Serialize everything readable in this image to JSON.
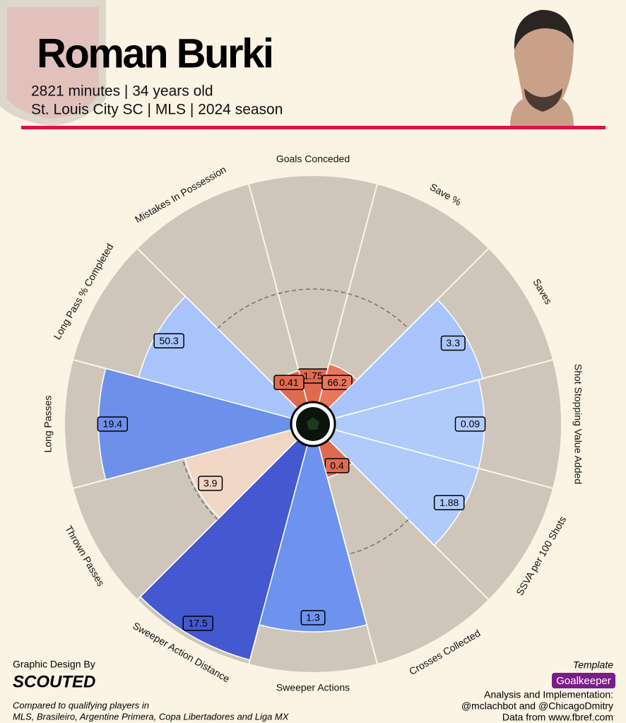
{
  "header": {
    "title": "Roman Burki",
    "subtitle_lines": [
      "2821 minutes | 34 years old",
      "St. Louis City SC | MLS | 2024 season"
    ]
  },
  "chart_data": {
    "type": "pizza",
    "categories": [
      "Goals Conceded",
      "Save %",
      "Saves",
      "Shot Stopping Value Added",
      "SSVA per 100 Shots",
      "Crosses Collected",
      "Sweeper Actions",
      "Sweeper Action Distance",
      "Thrown Passes",
      "Long Passes",
      "Long Pass % Completed",
      "Mistakes In Possession"
    ],
    "values": [
      1.75,
      66.2,
      3.3,
      0.09,
      1.88,
      0.4,
      1.3,
      17.5,
      3.9,
      19.4,
      50.3,
      0.41
    ],
    "percentiles": [
      15,
      18,
      68,
      66,
      66,
      15,
      82,
      98,
      49,
      85,
      70,
      15
    ],
    "colors": [
      "#e06a4f",
      "#e9775c",
      "#a9c4fa",
      "#b0cbf9",
      "#b0cbf9",
      "#e06a4f",
      "#6d93ee",
      "#4458cf",
      "#f0d6c4",
      "#6d90ea",
      "#a9c4fa",
      "#e06a4f"
    ],
    "background_color": "#cec6ba",
    "reference_percentile": 50
  },
  "footer": {
    "credit": "Graphic Design By",
    "brand": "SCOUTED",
    "comparison_lines": [
      "Compared to qualifying players in",
      "MLS, Brasileiro, Argentine Primera, Copa Libertadores and Liga MX"
    ],
    "template_label": "Template",
    "template": "Goalkeeper",
    "analysis_lines": [
      "Analysis and Implementation:",
      "@mclachbot and @ChicagoDmitry",
      "Data from www.fbref.com"
    ]
  }
}
